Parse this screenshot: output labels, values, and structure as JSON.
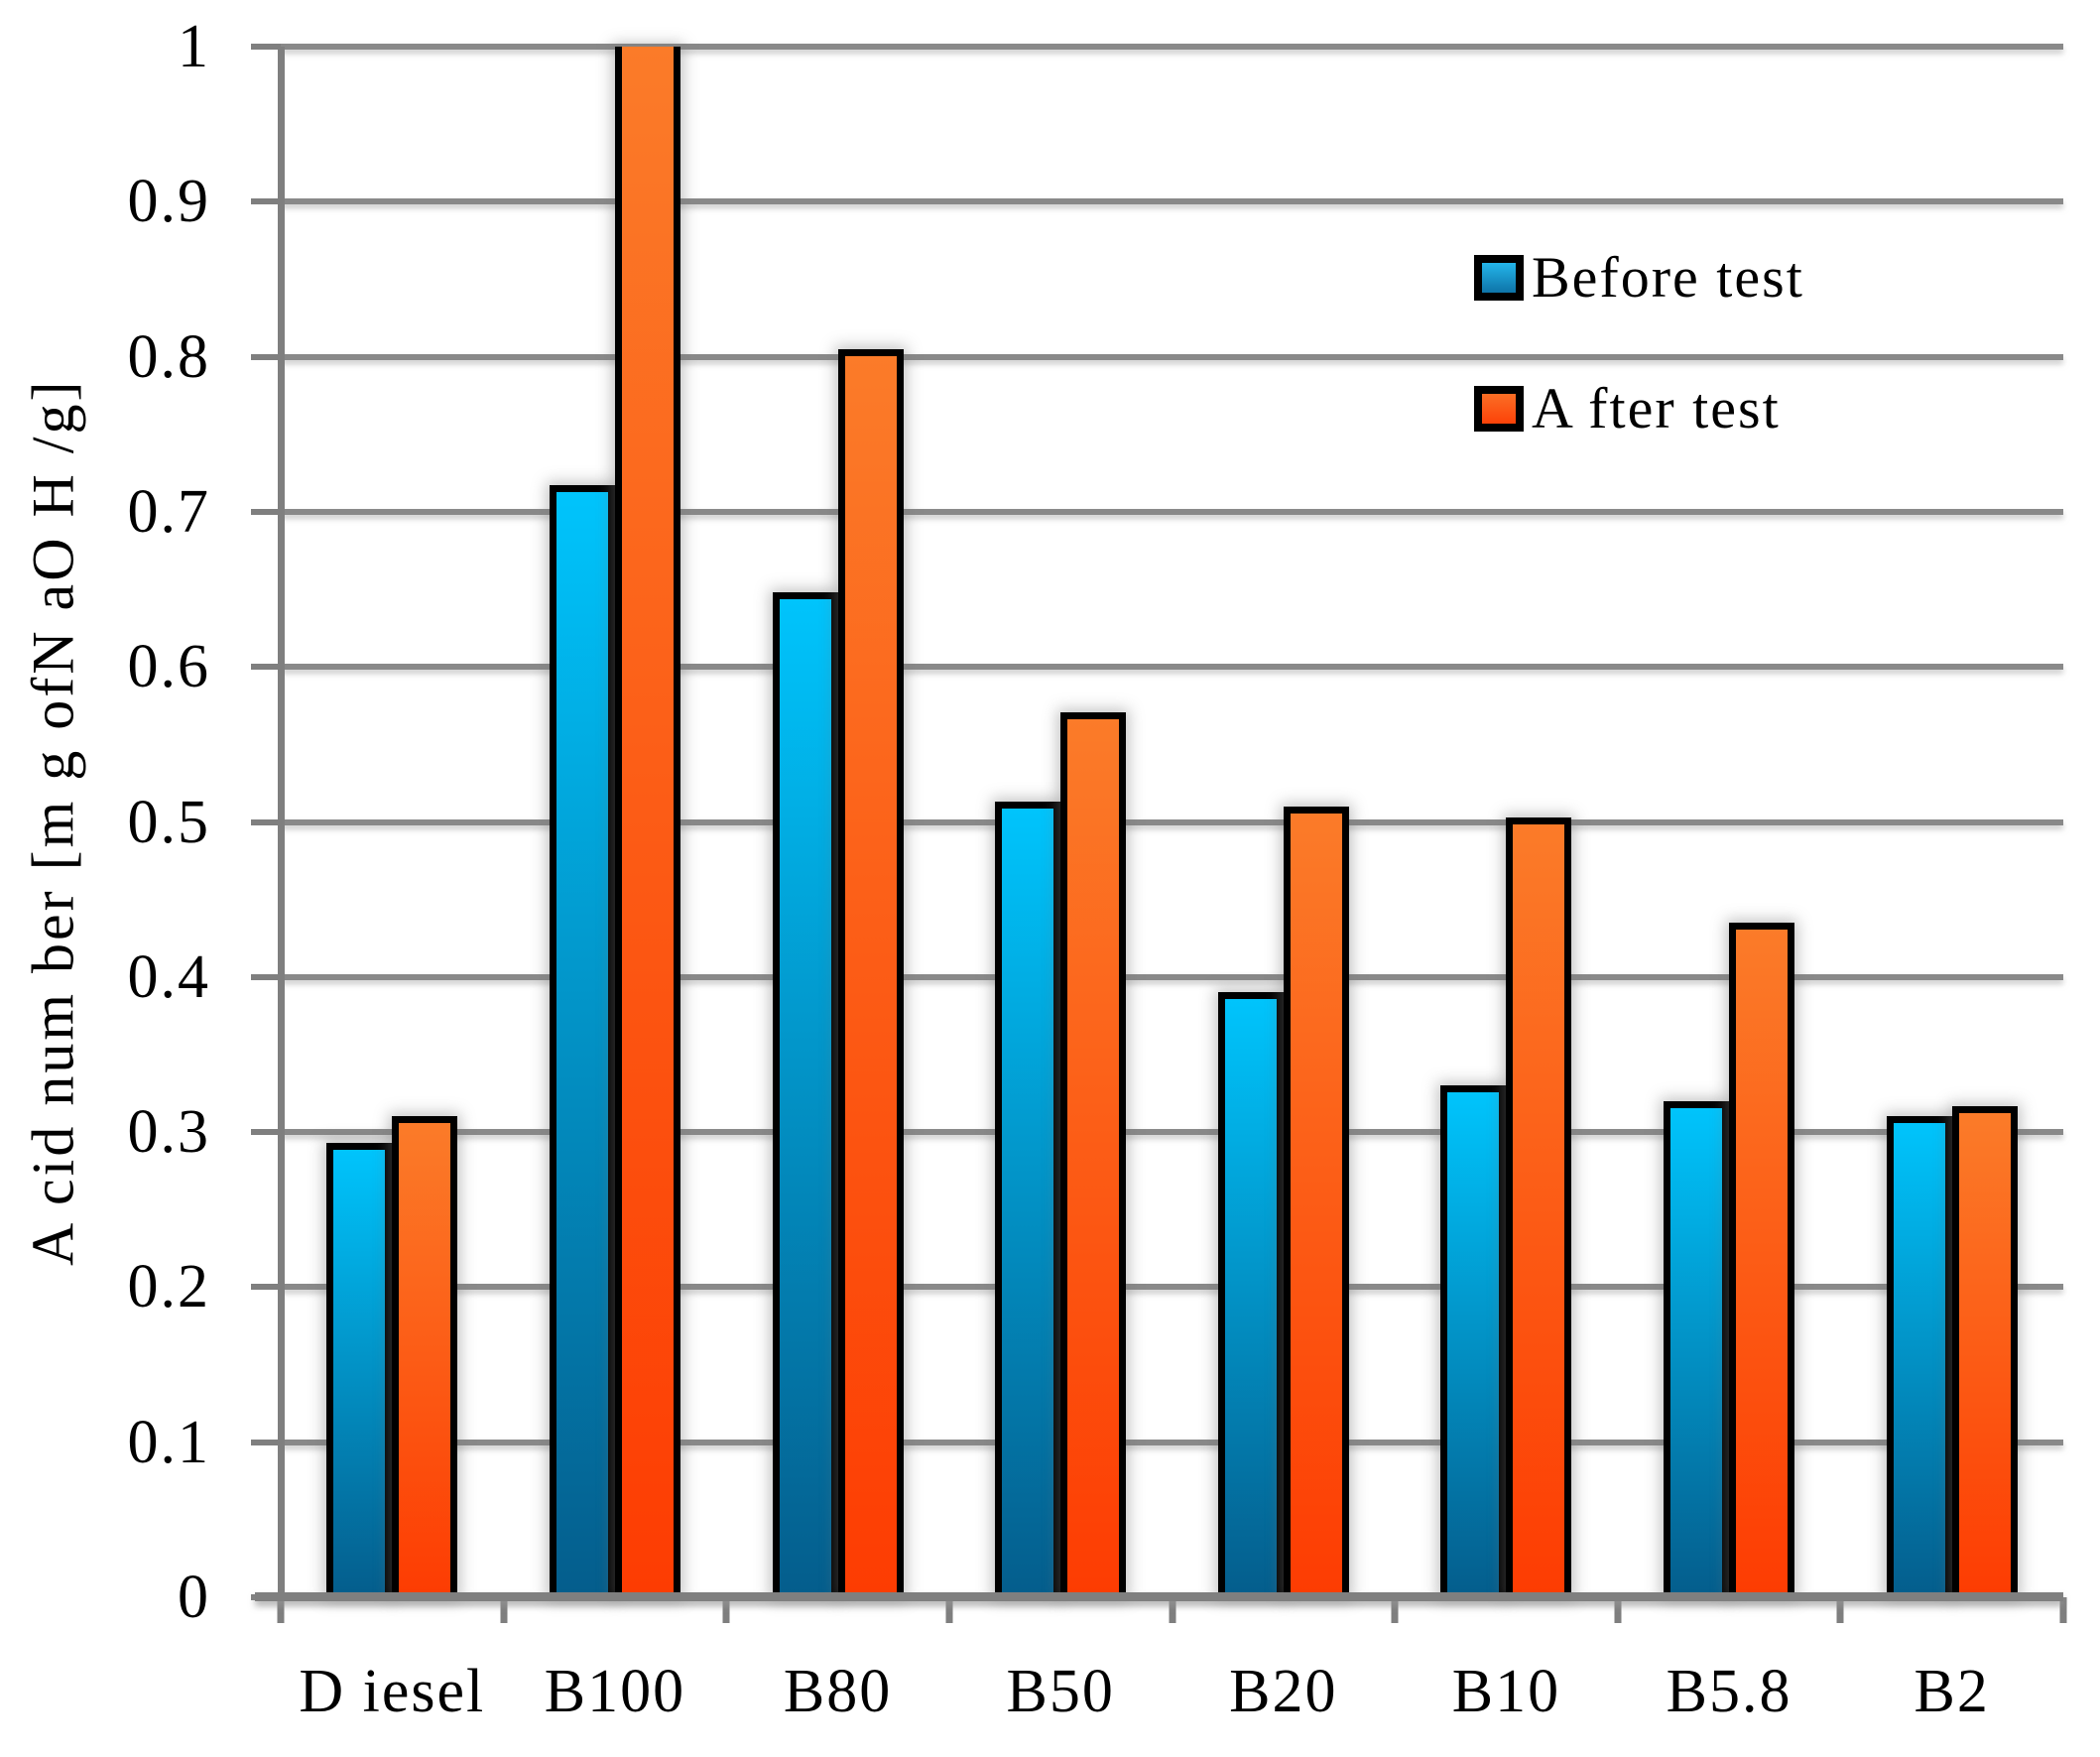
{
  "chart_data": {
    "type": "bar",
    "title": "",
    "ylabel": "A cid num ber [m g ofN aO H /g]",
    "xlabel": "",
    "categories": [
      "D iesel",
      "B100",
      "B80",
      "B50",
      "B20",
      "B10",
      "B5.8",
      "B2"
    ],
    "series": [
      {
        "name": "Before test",
        "color_top": "#00c4fc",
        "color_bottom": "#045d8c",
        "swatch_top": "#24b5ea",
        "swatch_bottom": "#0e74a8",
        "values": [
          0.293,
          0.717,
          0.648,
          0.513,
          0.39,
          0.33,
          0.32,
          0.31
        ]
      },
      {
        "name": "A fter test",
        "color_top": "#fb7b29",
        "color_bottom": "#fd3c02",
        "swatch_top": "#fb6e25",
        "swatch_bottom": "#fc4208",
        "values": [
          0.31,
          1.0,
          0.805,
          0.571,
          0.51,
          0.503,
          0.435,
          0.317
        ],
        "clipped_at_axis_max": [
          false,
          true,
          false,
          false,
          false,
          false,
          false,
          false
        ]
      }
    ],
    "ylim": [
      0,
      1
    ],
    "ytick_labels": [
      "0",
      "0.1",
      "0.2",
      "0.3",
      "0.4",
      "0.5",
      "0.6",
      "0.7",
      "0.8",
      "0.9",
      "1"
    ],
    "grid": true,
    "legend_position": "upper right",
    "axis_color": "#7f7f7f",
    "gridline_color": "#898989",
    "bar_border_color": "#000000",
    "background_color": "#ffffff"
  }
}
